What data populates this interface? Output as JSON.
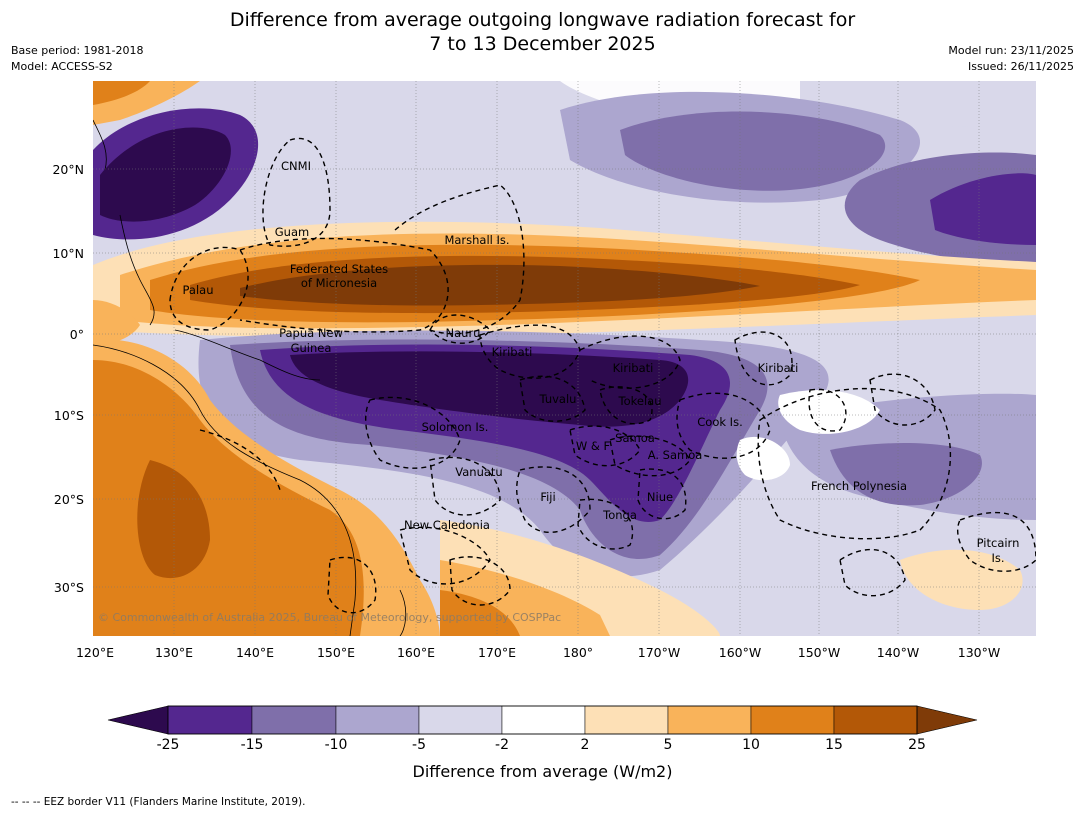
{
  "title_line1": "Difference from average outgoing longwave radiation forecast for",
  "title_line2": "7 to 13 December 2025",
  "base_period": "Base period: 1981-2018",
  "model": "Model: ACCESS-S2",
  "model_run": "Model run: 23/11/2025",
  "issued": "Issued: 26/11/2025",
  "copyright": "© Commonwealth of Australia 2025, Bureau of Meteorology, supported by COSPPac",
  "lat_ticks": [
    "20°N",
    "10°N",
    "0°",
    "10°S",
    "20°S",
    "30°S"
  ],
  "lon_ticks": [
    "120°E",
    "130°E",
    "140°E",
    "150°E",
    "160°E",
    "170°E",
    "180°",
    "170°W",
    "160°W",
    "150°W",
    "140°W",
    "130°W"
  ],
  "region_labels": {
    "cnmi": "CNMI",
    "guam": "Guam",
    "marshall": "Marshall Is.",
    "fsm_1": "Federated States",
    "fsm_2": "of Micronesia",
    "palau": "Palau",
    "png_1": "Papua New",
    "png_2": "Guinea",
    "nauru": "Nauru",
    "kiribati_w": "Kiribati",
    "kiribati_c": "Kiribati",
    "kiribati_e": "Kiribati",
    "tuvalu": "Tuvalu",
    "tokelau": "Tokelau",
    "solomon": "Solomon Is.",
    "cook": "Cook Is.",
    "wf": "W & F",
    "samoa": "Samoa",
    "asamoa": "A. Samoa",
    "vanuatu": "Vanuatu",
    "fiji": "Fiji",
    "niue": "Niue",
    "tonga": "Tonga",
    "frpoly": "French Polynesia",
    "newcal": "New Caledonia",
    "pitcairn_1": "Pitcairn",
    "pitcairn_2": "Is."
  },
  "colorbar": {
    "labels": [
      "-25",
      "-15",
      "-10",
      "-5",
      "-2",
      "2",
      "5",
      "10",
      "15",
      "25"
    ],
    "colors": [
      "#2d0a4e",
      "#54278f",
      "#7f6faa",
      "#aca6cf",
      "#d9d8ea",
      "#ffffff",
      "#fde0b6",
      "#f9b35a",
      "#e0811a",
      "#b35807",
      "#7f3b08"
    ],
    "title": "Difference from average (W/m2)"
  },
  "footnote": "--  --  -- EEZ border V11 (Flanders Marine Institute, 2019)."
}
